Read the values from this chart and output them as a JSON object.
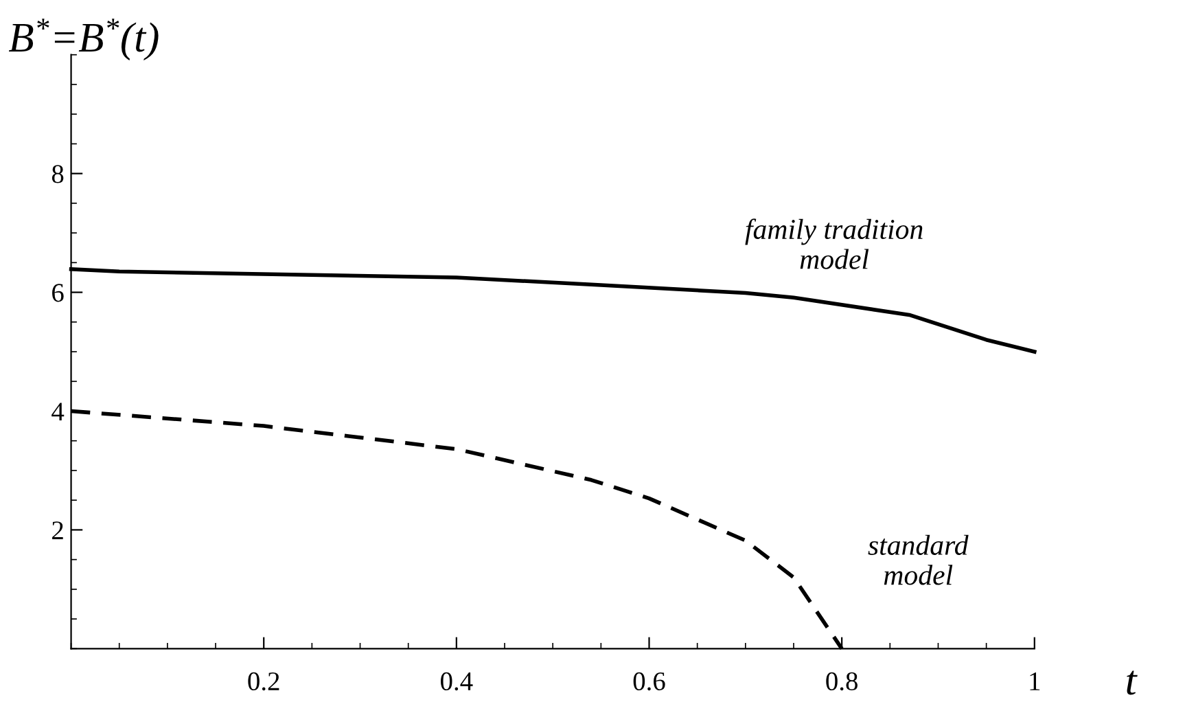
{
  "chart_data": {
    "type": "line",
    "xlabel": "t",
    "ylabel": "B$^{*}$=B$^{*}$(t)",
    "xlim": [
      0,
      1
    ],
    "ylim": [
      0,
      10
    ],
    "xticks": [
      0.2,
      0.4,
      0.6,
      0.8,
      1
    ],
    "yticks": [
      2,
      4,
      6,
      8
    ],
    "grid": false,
    "legend": false,
    "series": [
      {
        "name": "family tradition\nmodel",
        "color": "#000000",
        "line_style": "solid",
        "x": [
          0,
          0.05,
          0.4,
          0.54,
          0.7,
          0.75,
          0.87,
          0.95,
          1
        ],
        "values": [
          6.39,
          6.35,
          6.25,
          6.13,
          5.99,
          5.91,
          5.62,
          5.2,
          5.0
        ]
      },
      {
        "name": "standard\nmodel",
        "color": "#000000",
        "line_style": "dashed",
        "x": [
          0,
          0.2,
          0.4,
          0.54,
          0.6,
          0.7,
          0.75,
          0.8
        ],
        "values": [
          4.0,
          3.75,
          3.36,
          2.84,
          2.53,
          1.82,
          1.2,
          0
        ]
      }
    ]
  }
}
